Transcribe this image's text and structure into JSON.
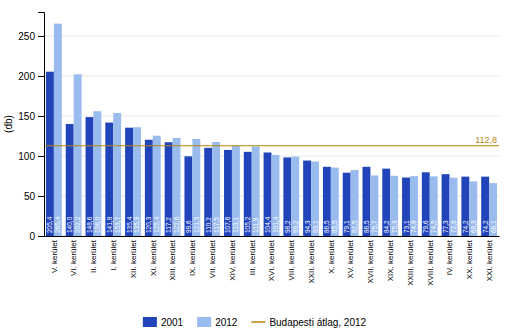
{
  "chart_data": {
    "type": "bar",
    "categories": [
      "V. kerület",
      "VI. kerület",
      "II. kerület",
      "I. kerület",
      "XII. kerület",
      "XI. kerület",
      "XIII. kerület",
      "IX. kerület",
      "VII. kerület",
      "XIV. kerület",
      "III. kerület",
      "XVI. kerület",
      "VIII. kerület",
      "XXII. kerület",
      "X. kerület",
      "XV. kerület",
      "XVII. kerület",
      "XIX. kerület",
      "XXIII. kerület",
      "XVIII. kerület",
      "IV. kerület",
      "XX. kerület",
      "XXI. kerület"
    ],
    "series": [
      {
        "name": "2001",
        "color": "#2244bb",
        "values": [
          205.4,
          140.0,
          148.6,
          141.8,
          135.4,
          120.3,
          117.2,
          99.6,
          110.2,
          107.6,
          105.2,
          104.4,
          98.2,
          94.3,
          86.5,
          79.1,
          86.5,
          84.2,
          73.1,
          79.6,
          77.3,
          74.2,
          74.2
        ],
        "value_labels": [
          "205,4",
          "140,0",
          "148,6",
          "141,8",
          "135,4",
          "120,3",
          "117,2",
          "99,6",
          "110,2",
          "107,6",
          "105,2",
          "104,4",
          "98,2",
          "94,3",
          "86,5",
          "79,1",
          "86,5",
          "84,2",
          "73,1",
          "79,6",
          "77,3",
          "74,2",
          "74,2"
        ]
      },
      {
        "name": "2012",
        "color": "#99bbee",
        "values": [
          265.4,
          202.2,
          156.0,
          153.7,
          135.9,
          125.4,
          122.6,
          121.3,
          117.5,
          113.1,
          111.9,
          101.4,
          99.2,
          93.1,
          85.5,
          82.5,
          75.7,
          75.3,
          74.8,
          74.5,
          72.9,
          68.3,
          66.1
        ],
        "value_labels": [
          "265,4",
          "202,2",
          "156,0",
          "153,7",
          "135,9",
          "125,4",
          "122,6",
          "121,3",
          "117,5",
          "113,1",
          "111,9",
          "101,4",
          "99,2",
          "93,1",
          "85,5",
          "82,5",
          "75,7",
          "75,3",
          "74,8",
          "74,5",
          "72,9",
          "68,3",
          "66,1"
        ]
      }
    ],
    "annotations": [
      {
        "type": "hline",
        "name": "Budapesti átlag, 2012",
        "y": 112.8,
        "label": "112,8",
        "color": "#b8860b"
      }
    ],
    "y_label": "(db)",
    "ylim": [
      0,
      280
    ],
    "yticks": [
      0,
      50,
      100,
      150,
      200,
      250
    ],
    "grid": true,
    "data_labels": true,
    "legend": "bottom"
  }
}
